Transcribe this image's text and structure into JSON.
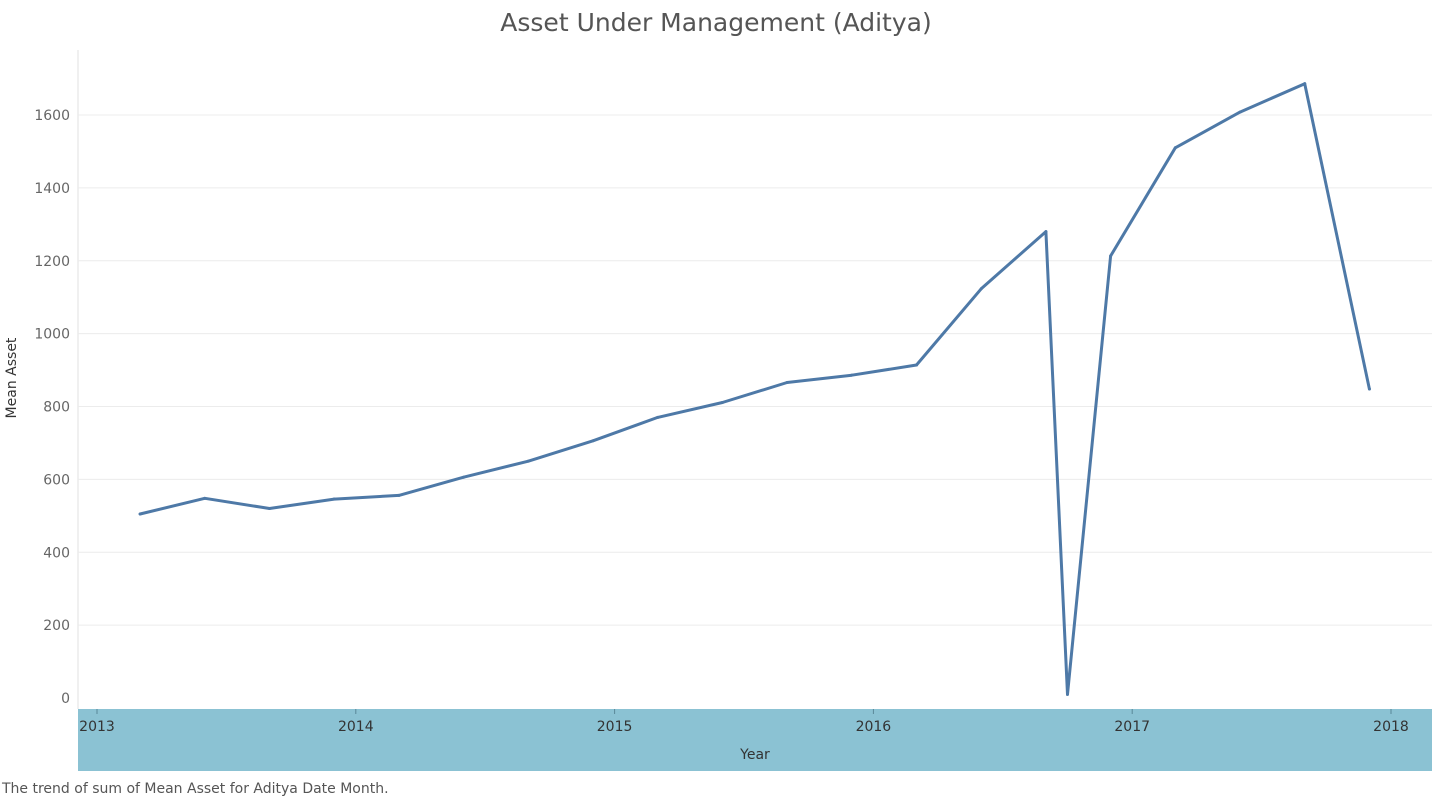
{
  "chart_data": {
    "type": "line",
    "title": "Asset Under Management (Aditya)",
    "xlabel": "Year",
    "ylabel": "Mean Asset",
    "caption": "The trend of sum of Mean Asset for Aditya Date Month.",
    "x_ticks": [
      "2013",
      "2014",
      "2015",
      "2016",
      "2017",
      "2018"
    ],
    "y_ticks": [
      0,
      200,
      400,
      600,
      800,
      1000,
      1200,
      1400,
      1600
    ],
    "ylim": [
      0,
      1700
    ],
    "grid": true,
    "colors": {
      "line": "#4e79a7",
      "axis_band": "#8bc2d3",
      "grid": "#ececec"
    },
    "series": [
      {
        "values": [
          {
            "x": "2013-03",
            "y": 505
          },
          {
            "x": "2013-06",
            "y": 548
          },
          {
            "x": "2013-09",
            "y": 520
          },
          {
            "x": "2013-12",
            "y": 546
          },
          {
            "x": "2014-03",
            "y": 556
          },
          {
            "x": "2014-06",
            "y": 606
          },
          {
            "x": "2014-09",
            "y": 650
          },
          {
            "x": "2014-12",
            "y": 706
          },
          {
            "x": "2015-03",
            "y": 770
          },
          {
            "x": "2015-06",
            "y": 811
          },
          {
            "x": "2015-09",
            "y": 866
          },
          {
            "x": "2015-12",
            "y": 886
          },
          {
            "x": "2016-03",
            "y": 914
          },
          {
            "x": "2016-06",
            "y": 1123
          },
          {
            "x": "2016-09",
            "y": 1280
          },
          {
            "x": "2016-10",
            "y": 10
          },
          {
            "x": "2016-12",
            "y": 1213
          },
          {
            "x": "2017-03",
            "y": 1510
          },
          {
            "x": "2017-06",
            "y": 1608
          },
          {
            "x": "2017-09",
            "y": 1686
          },
          {
            "x": "2017-12",
            "y": 848
          }
        ]
      }
    ]
  }
}
